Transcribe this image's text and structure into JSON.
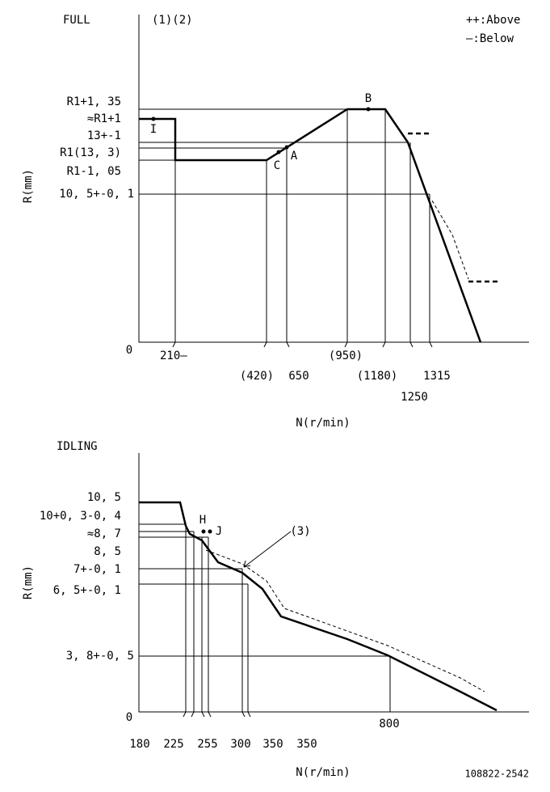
{
  "full": {
    "title": "FULL",
    "notes": "(1)(2)",
    "legend": [
      "++:Above",
      "—:Below"
    ],
    "y_labels": [
      "R1+1, 35",
      "≈R1+1",
      "13+-1",
      "R1(13, 3)",
      "R1-1, 05",
      "10, 5+-0, 1",
      "0"
    ],
    "x_labels": [
      "210—",
      "(420)",
      "650",
      "(950)",
      "(1180)",
      "1250",
      "1315"
    ],
    "points": [
      "I",
      "B",
      "C",
      "A"
    ],
    "x_axis": "N(r/min)",
    "y_axis": "R(mm)"
  },
  "idling": {
    "title": "IDLING",
    "y_labels": [
      "10, 5",
      "10+0, 3-0, 4",
      "≈8, 7",
      "8, 5",
      "7+-0, 1",
      "6, 5+-0, 1",
      "3, 8+-0, 5",
      "0"
    ],
    "x_labels": [
      "180",
      "225",
      "255",
      "300",
      "350",
      "350",
      "800"
    ],
    "points": [
      "H",
      "J"
    ],
    "note": "(3)",
    "x_axis": "N(r/min)",
    "y_axis": "R(mm)"
  },
  "footer": "108822-2542"
}
